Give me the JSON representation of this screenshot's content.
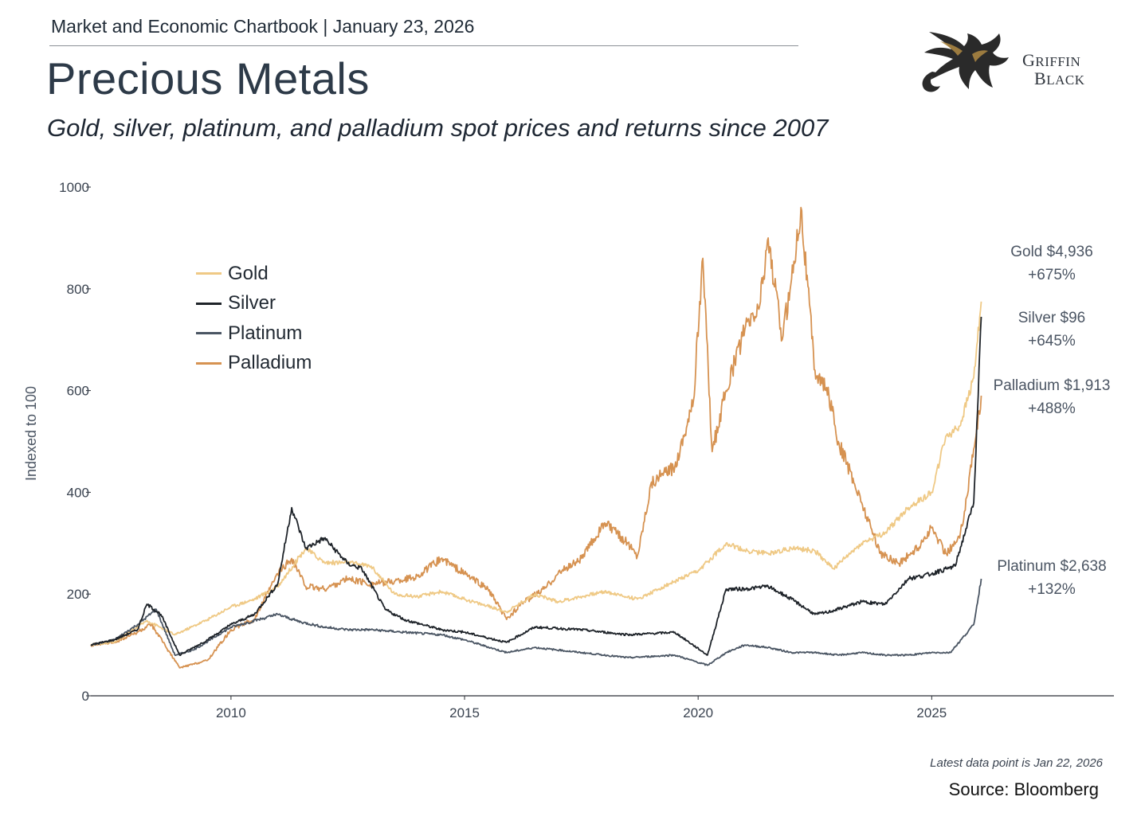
{
  "header": {
    "top_line": "Market and Economic Chartbook | January 23, 2026",
    "title": "Precious Metals",
    "subtitle": "Gold, silver, platinum, and palladium spot prices and returns since 2007"
  },
  "logo": {
    "line1_cap": "G",
    "line1_rest": "RIFFIN",
    "line2_cap": "B",
    "line2_rest": "LACK",
    "icon": "griffin-icon"
  },
  "footer": {
    "note": "Latest data point is Jan 22, 2026",
    "source": "Source: Bloomberg"
  },
  "end_labels": [
    {
      "series": "Gold",
      "line1": "Gold $4,936",
      "line2": "+675%"
    },
    {
      "series": "Silver",
      "line1": "Silver $96",
      "line2": "+645%"
    },
    {
      "series": "Palladium",
      "line1": "Palladium $1,913",
      "line2": "+488%"
    },
    {
      "series": "Platinum",
      "line1": "Platinum $2,638",
      "line2": "+132%"
    }
  ],
  "chart_data": {
    "type": "line",
    "ylabel": "Indexed to 100",
    "xlabel": "",
    "xlim": [
      2007.0,
      2028.9
    ],
    "ylim": [
      0,
      1000
    ],
    "xticks": [
      2010,
      2015,
      2020,
      2025
    ],
    "yticks": [
      0,
      200,
      400,
      600,
      800,
      1000
    ],
    "grid": false,
    "legend": "upper-left",
    "series": [
      {
        "name": "Gold",
        "color": "#efc985",
        "x": [
          2007.0,
          2007.5,
          2008.0,
          2008.2,
          2008.8,
          2009.5,
          2010.0,
          2010.5,
          2011.0,
          2011.6,
          2012.0,
          2012.5,
          2013.0,
          2013.5,
          2014.0,
          2014.5,
          2015.0,
          2015.9,
          2016.5,
          2017.0,
          2018.0,
          2018.7,
          2019.5,
          2020.0,
          2020.6,
          2021.0,
          2021.5,
          2022.0,
          2022.5,
          2022.9,
          2023.5,
          2024.0,
          2024.5,
          2025.0,
          2025.3,
          2025.6,
          2025.9,
          2026.06
        ],
        "y": [
          100,
          105,
          135,
          148,
          120,
          150,
          175,
          190,
          215,
          290,
          262,
          262,
          255,
          200,
          195,
          205,
          190,
          165,
          200,
          185,
          205,
          190,
          225,
          245,
          300,
          285,
          280,
          290,
          285,
          250,
          300,
          320,
          370,
          400,
          510,
          530,
          625,
          775
        ]
      },
      {
        "name": "Silver",
        "color": "#1e2329",
        "x": [
          2007.0,
          2007.5,
          2008.0,
          2008.2,
          2008.5,
          2008.9,
          2009.5,
          2010.0,
          2010.5,
          2011.0,
          2011.3,
          2011.6,
          2012.0,
          2012.5,
          2012.8,
          2013.3,
          2013.7,
          2014.5,
          2015.0,
          2015.9,
          2016.5,
          2017.5,
          2018.5,
          2019.5,
          2020.2,
          2020.6,
          2021.0,
          2021.5,
          2022.0,
          2022.5,
          2022.8,
          2023.5,
          2024.0,
          2024.5,
          2025.0,
          2025.5,
          2025.9,
          2026.06
        ],
        "y": [
          100,
          110,
          130,
          180,
          160,
          80,
          110,
          140,
          160,
          220,
          370,
          290,
          310,
          260,
          250,
          170,
          150,
          130,
          125,
          105,
          135,
          130,
          120,
          125,
          80,
          210,
          210,
          215,
          190,
          160,
          165,
          185,
          180,
          230,
          240,
          255,
          380,
          745
        ]
      },
      {
        "name": "Platinum",
        "color": "#4a5563",
        "x": [
          2007.0,
          2007.5,
          2008.0,
          2008.4,
          2008.8,
          2009.2,
          2010.0,
          2010.6,
          2011.0,
          2011.5,
          2012.0,
          2012.5,
          2013.0,
          2013.7,
          2014.5,
          2015.0,
          2015.9,
          2016.5,
          2017.5,
          2018.5,
          2019.5,
          2020.2,
          2020.6,
          2021.0,
          2021.5,
          2022.0,
          2022.5,
          2023.0,
          2023.5,
          2024.0,
          2024.5,
          2025.0,
          2025.4,
          2025.9,
          2026.06
        ],
        "y": [
          100,
          110,
          140,
          170,
          80,
          90,
          135,
          150,
          160,
          145,
          135,
          130,
          130,
          125,
          120,
          110,
          85,
          95,
          85,
          75,
          80,
          60,
          85,
          100,
          95,
          85,
          85,
          80,
          85,
          80,
          80,
          85,
          85,
          140,
          230
        ]
      },
      {
        "name": "Palladium",
        "color": "#d69251",
        "x": [
          2007.0,
          2007.5,
          2008.0,
          2008.3,
          2008.9,
          2009.5,
          2010.0,
          2010.5,
          2011.0,
          2011.3,
          2011.6,
          2012.0,
          2012.5,
          2013.0,
          2013.5,
          2014.0,
          2014.5,
          2015.0,
          2015.5,
          2015.9,
          2016.2,
          2016.7,
          2017.0,
          2017.5,
          2018.0,
          2018.5,
          2018.7,
          2019.0,
          2019.5,
          2019.9,
          2020.1,
          2020.3,
          2020.6,
          2021.0,
          2021.3,
          2021.5,
          2021.8,
          2022.0,
          2022.2,
          2022.5,
          2022.8,
          2023.0,
          2023.5,
          2023.9,
          2024.3,
          2024.7,
          2025.0,
          2025.3,
          2025.6,
          2025.85,
          2026.06
        ],
        "y": [
          100,
          105,
          125,
          140,
          55,
          70,
          130,
          150,
          240,
          270,
          215,
          210,
          230,
          220,
          225,
          235,
          270,
          240,
          210,
          150,
          180,
          210,
          240,
          270,
          340,
          300,
          275,
          420,
          450,
          580,
          860,
          480,
          600,
          720,
          760,
          900,
          700,
          820,
          960,
          640,
          590,
          500,
          380,
          280,
          260,
          290,
          330,
          280,
          310,
          450,
          590
        ]
      }
    ]
  }
}
